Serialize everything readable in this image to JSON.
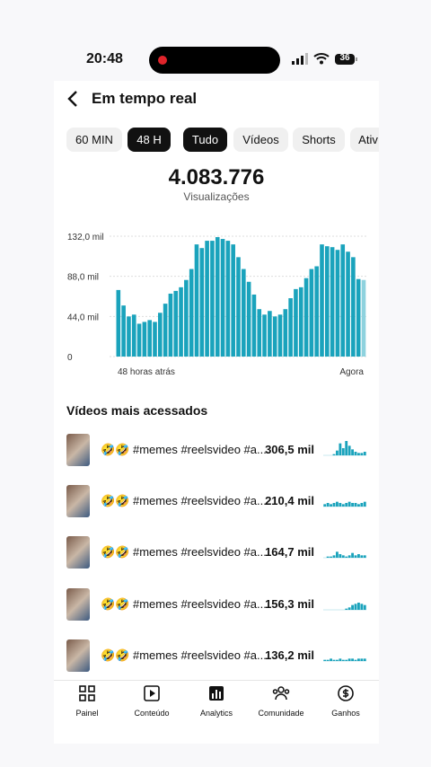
{
  "status": {
    "time": "20:48",
    "battery": "36"
  },
  "header": {
    "title": "Em tempo real"
  },
  "filters": [
    {
      "label": "60 MIN",
      "selected": false
    },
    {
      "label": "48 H",
      "selected": true
    },
    {
      "label": "Tudo",
      "selected": true
    },
    {
      "label": "Vídeos",
      "selected": false
    },
    {
      "label": "Shorts",
      "selected": false
    },
    {
      "label": "Ativ",
      "selected": false
    }
  ],
  "summary": {
    "total": "4.083.776",
    "label": "Visualizações"
  },
  "chart_data": {
    "type": "bar",
    "color": "#1aa3bc",
    "current_color": "#8ed2de",
    "values": [
      73,
      56,
      44,
      46,
      36,
      38,
      40,
      38,
      48,
      58,
      69,
      72,
      76,
      84,
      96,
      123,
      119,
      127,
      127,
      131,
      129,
      127,
      123,
      109,
      96,
      82,
      68,
      52,
      46,
      50,
      44,
      46,
      52,
      64,
      74,
      76,
      86,
      96,
      99,
      123,
      121,
      120,
      117,
      123,
      115,
      109,
      85,
      84
    ],
    "ylim": [
      0,
      132
    ],
    "yticks": [
      0,
      {
        "value": 44,
        "label": "44,0 mil"
      },
      {
        "value": 88,
        "label": "88,0 mil"
      },
      {
        "value": 132,
        "label": "132,0 mil"
      }
    ],
    "grid": true,
    "x_start_label": "48 horas atrás",
    "x_end_label": "Agora"
  },
  "videos": {
    "title": "Vídeos mais acessados",
    "items": [
      {
        "title": "🤣🤣 #memes #reelsvideo #a...",
        "views": "306,5 mil",
        "trend": [
          0,
          0,
          0,
          1,
          4,
          10,
          6,
          12,
          8,
          5,
          3,
          2,
          2,
          3
        ]
      },
      {
        "title": "🤣🤣 #memes #reelsvideo #a...",
        "views": "210,4 mil",
        "trend": [
          2,
          3,
          2,
          3,
          4,
          3,
          2,
          3,
          4,
          3,
          3,
          2,
          3,
          4
        ]
      },
      {
        "title": "🤣🤣 #memes #reelsvideo #a...",
        "views": "164,7 mil",
        "trend": [
          0,
          1,
          1,
          2,
          5,
          3,
          2,
          1,
          2,
          4,
          2,
          3,
          2,
          2
        ]
      },
      {
        "title": "🤣🤣 #memes #reelsvideo #a...",
        "views": "156,3 mil",
        "trend": [
          0,
          0,
          0,
          0,
          0,
          0,
          0,
          1,
          2,
          4,
          5,
          6,
          5,
          4
        ]
      },
      {
        "title": "🤣🤣 #memes #reelsvideo #a...",
        "views": "136,2 mil",
        "trend": [
          1,
          1,
          2,
          1,
          1,
          2,
          1,
          1,
          2,
          2,
          1,
          2,
          2,
          2
        ]
      }
    ]
  },
  "nav": [
    "Painel",
    "Conteúdo",
    "Analytics",
    "Comunidade",
    "Ganhos"
  ]
}
